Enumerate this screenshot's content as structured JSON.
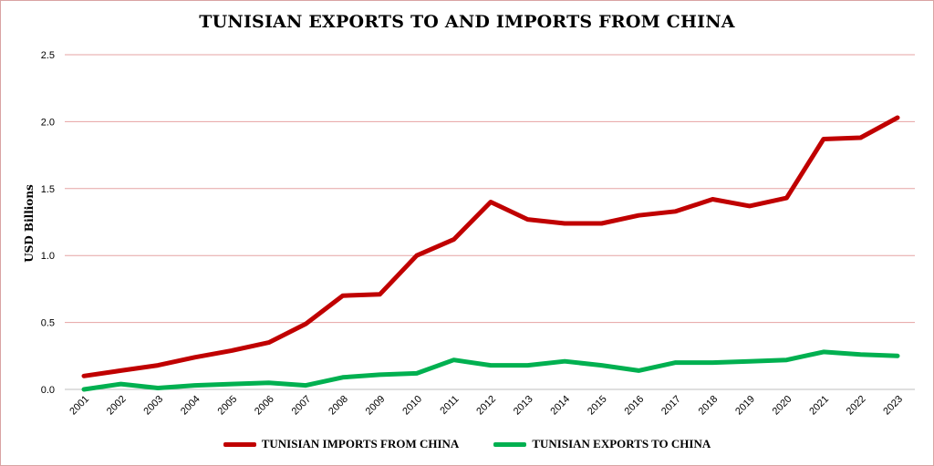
{
  "chart_data": {
    "type": "line",
    "title": "TUNISIAN EXPORTS TO AND IMPORTS FROM CHINA",
    "xlabel": "",
    "ylabel": "USD Billions",
    "ylim": [
      0,
      2.5
    ],
    "yticks": [
      "0.0",
      "0.5",
      "1.0",
      "1.5",
      "2.0",
      "2.5"
    ],
    "ytick_values": [
      0,
      0.5,
      1.0,
      1.5,
      2.0,
      2.5
    ],
    "grid": true,
    "legend_position": "bottom",
    "categories": [
      "2001",
      "2002",
      "2003",
      "2004",
      "2005",
      "2006",
      "2007",
      "2008",
      "2009",
      "2010",
      "2011",
      "2012",
      "2013",
      "2014",
      "2015",
      "2016",
      "2017",
      "2018",
      "2019",
      "2020",
      "2021",
      "2022",
      "2023"
    ],
    "series": [
      {
        "name": "TUNISIAN IMPORTS FROM CHINA",
        "color": "#c00000",
        "values": [
          0.1,
          0.14,
          0.18,
          0.24,
          0.29,
          0.35,
          0.49,
          0.7,
          0.71,
          1.0,
          1.12,
          1.4,
          1.27,
          1.24,
          1.24,
          1.3,
          1.33,
          1.42,
          1.37,
          1.43,
          1.87,
          1.88,
          2.03
        ]
      },
      {
        "name": "TUNISIAN EXPORTS TO CHINA",
        "color": "#00b050",
        "values": [
          0.0,
          0.04,
          0.01,
          0.03,
          0.04,
          0.05,
          0.03,
          0.09,
          0.11,
          0.12,
          0.22,
          0.18,
          0.18,
          0.21,
          0.18,
          0.14,
          0.2,
          0.2,
          0.21,
          0.22,
          0.28,
          0.26,
          0.25
        ]
      }
    ]
  }
}
